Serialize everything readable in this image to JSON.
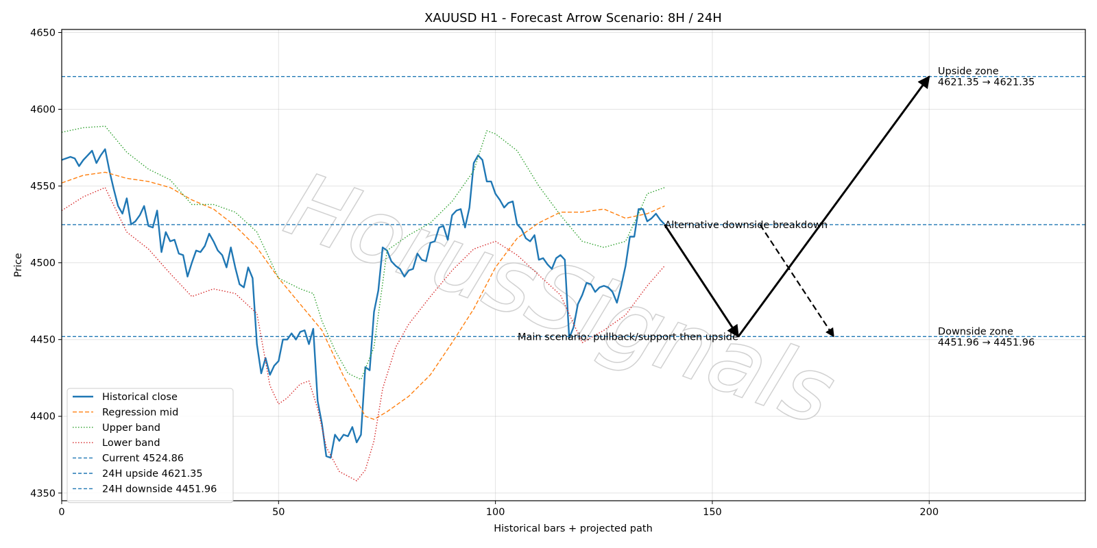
{
  "chart_data": {
    "type": "line",
    "title": "XAUUSD H1 - Forecast Arrow Scenario: 8H / 24H",
    "xlabel": "Historical bars + projected path",
    "ylabel": "Price",
    "xlim": [
      0,
      236
    ],
    "ylim": [
      4345,
      4652
    ],
    "xticks": [
      0,
      50,
      100,
      150,
      200
    ],
    "yticks": [
      4350,
      4400,
      4450,
      4500,
      4550,
      4600,
      4650
    ],
    "grid": true,
    "legend_position": "lower-left",
    "watermark": "HorusSignals",
    "series": [
      {
        "name": "Historical close",
        "color": "#1f77b4",
        "style": "solid",
        "x": [
          0,
          2,
          3,
          4,
          5,
          7,
          8,
          9,
          10,
          11,
          12,
          13,
          14,
          15,
          16,
          17,
          18,
          19,
          20,
          21,
          22,
          23,
          24,
          25,
          26,
          27,
          28,
          29,
          30,
          31,
          32,
          33,
          34,
          35,
          36,
          37,
          38,
          39,
          40,
          41,
          42,
          43,
          44,
          45,
          46,
          47,
          48,
          49,
          50,
          51,
          52,
          53,
          54,
          55,
          56,
          57,
          58,
          59,
          60,
          61,
          62,
          63,
          64,
          65,
          66,
          67,
          68,
          69,
          70,
          71,
          72,
          73,
          74,
          75,
          76,
          77,
          78,
          79,
          80,
          81,
          82,
          83,
          84,
          85,
          86,
          87,
          88,
          89,
          90,
          91,
          92,
          93,
          94,
          95,
          96,
          97,
          98,
          99,
          100,
          101,
          102,
          103,
          104,
          105,
          106,
          107,
          108,
          109,
          110,
          111,
          112,
          113,
          114,
          115,
          116,
          117,
          118,
          119,
          120,
          121,
          122,
          123,
          124,
          125,
          126,
          127,
          128,
          129,
          130,
          131,
          132,
          133,
          134,
          135,
          136,
          137,
          138,
          139
        ],
        "y": [
          4567,
          4569,
          4568,
          4563,
          4567,
          4573,
          4565,
          4570,
          4574,
          4560,
          4548,
          4537,
          4532,
          4542,
          4525,
          4527,
          4531,
          4537,
          4524,
          4523,
          4534,
          4507,
          4520,
          4514,
          4515,
          4506,
          4505,
          4491,
          4500,
          4508,
          4507,
          4511,
          4519,
          4514,
          4508,
          4505,
          4497,
          4510,
          4497,
          4486,
          4484,
          4497,
          4490,
          4447,
          4428,
          4438,
          4427,
          4433,
          4436,
          4450,
          4450,
          4454,
          4450,
          4455,
          4456,
          4447,
          4457,
          4410,
          4395,
          4374,
          4373,
          4388,
          4384,
          4388,
          4387,
          4393,
          4383,
          4388,
          4432,
          4430,
          4468,
          4482,
          4510,
          4508,
          4501,
          4498,
          4496,
          4491,
          4495,
          4496,
          4506,
          4502,
          4501,
          4513,
          4514,
          4523,
          4524,
          4515,
          4531,
          4534,
          4535,
          4523,
          4536,
          4565,
          4570,
          4567,
          4553,
          4553,
          4545,
          4541,
          4536,
          4539,
          4540,
          4525,
          4522,
          4516,
          4514,
          4518,
          4502,
          4503,
          4499,
          4496,
          4503,
          4505,
          4502,
          4451,
          4458,
          4473,
          4479,
          4487,
          4486,
          4481,
          4484,
          4485,
          4484,
          4481,
          4474,
          4485,
          4498,
          4517,
          4517,
          4535,
          4535,
          4527,
          4529,
          4532,
          4528,
          4525
        ]
      },
      {
        "name": "Regression mid",
        "color": "#ff7f0e",
        "style": "dashed",
        "x": [
          0,
          5,
          10,
          15,
          20,
          25,
          30,
          35,
          40,
          45,
          50,
          55,
          60,
          65,
          70,
          72,
          75,
          80,
          85,
          90,
          95,
          100,
          105,
          110,
          115,
          120,
          125,
          130,
          135,
          139
        ],
        "y": [
          4552,
          4557,
          4559,
          4555,
          4553,
          4549,
          4541,
          4535,
          4524,
          4510,
          4490,
          4473,
          4456,
          4426,
          4400,
          4398,
          4403,
          4413,
          4427,
          4448,
          4470,
          4497,
          4516,
          4526,
          4533,
          4533,
          4535,
          4529,
          4532,
          4537
        ]
      },
      {
        "name": "Upper band",
        "color": "#2ca02c",
        "style": "dotted",
        "x": [
          0,
          5,
          10,
          15,
          20,
          25,
          30,
          35,
          40,
          45,
          50,
          55,
          58,
          60,
          63,
          66,
          69,
          72,
          75,
          80,
          85,
          90,
          95,
          98,
          100,
          105,
          110,
          115,
          120,
          125,
          130,
          133,
          135,
          139
        ],
        "y": [
          4585,
          4588,
          4589,
          4572,
          4561,
          4554,
          4538,
          4538,
          4533,
          4520,
          4490,
          4483,
          4480,
          4462,
          4443,
          4428,
          4424,
          4445,
          4508,
          4518,
          4526,
          4540,
          4560,
          4586,
          4584,
          4573,
          4550,
          4531,
          4514,
          4510,
          4514,
          4532,
          4545,
          4549
        ]
      },
      {
        "name": "Lower band",
        "color": "#d62728",
        "style": "dotted",
        "x": [
          0,
          5,
          10,
          15,
          20,
          25,
          30,
          35,
          40,
          45,
          48,
          50,
          52,
          55,
          57,
          59,
          61,
          64,
          66,
          68,
          70,
          72,
          74,
          77,
          80,
          85,
          90,
          95,
          100,
          105,
          110,
          115,
          120,
          125,
          130,
          135,
          139
        ],
        "y": [
          4534,
          4543,
          4549,
          4520,
          4509,
          4493,
          4478,
          4483,
          4480,
          4467,
          4420,
          4408,
          4412,
          4421,
          4423,
          4405,
          4380,
          4364,
          4361,
          4358,
          4365,
          4384,
          4418,
          4445,
          4460,
          4478,
          4495,
          4509,
          4514,
          4505,
          4492,
          4479,
          4448,
          4456,
          4466,
          4485,
          4498
        ]
      },
      {
        "name": "Current 4524.86",
        "color": "#1f77b4",
        "style": "dashed",
        "hline": 4524.86
      },
      {
        "name": "24H upside 4621.35",
        "color": "#1f77b4",
        "style": "dashed",
        "hline": 4621.35
      },
      {
        "name": "24H downside 4451.96",
        "color": "#1f77b4",
        "style": "dashed",
        "hline": 4451.96
      }
    ],
    "arrows": [
      {
        "from": [
          139,
          4524.86
        ],
        "to": [
          156,
          4451.96
        ],
        "style": "solid"
      },
      {
        "from": [
          156,
          4451.96
        ],
        "to": [
          200,
          4621.35
        ],
        "style": "solid"
      },
      {
        "from": [
          161,
          4524.86
        ],
        "to": [
          178,
          4451.96
        ],
        "style": "dashed"
      }
    ],
    "annotations": [
      {
        "text": "Alternative downside breakdown",
        "x": 139,
        "y": 4524.86,
        "anchor": "start"
      },
      {
        "text": "Main scenario: pullback/support then upside",
        "x": 156,
        "y": 4451.96,
        "anchor": "end"
      },
      {
        "text": "Upside zone",
        "x": 202,
        "y": 4621.35,
        "line": 1
      },
      {
        "text": "4621.35 → 4621.35",
        "x": 202,
        "y": 4621.35,
        "line": 2
      },
      {
        "text": "Downside zone",
        "x": 202,
        "y": 4451.96,
        "line": 1
      },
      {
        "text": "4451.96 → 4451.96",
        "x": 202,
        "y": 4451.96,
        "line": 2
      }
    ]
  }
}
